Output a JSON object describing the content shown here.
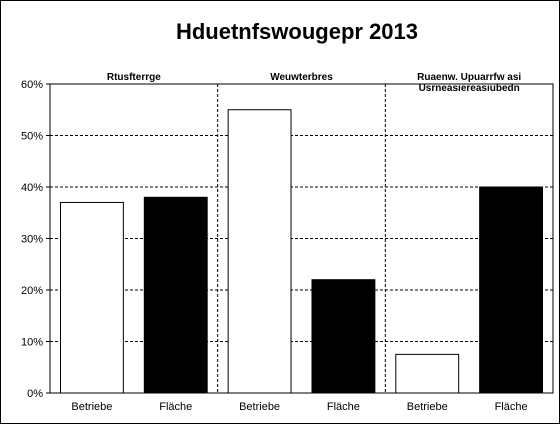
{
  "chart_data": {
    "type": "bar",
    "title": "Hduetnfswougepr 2013",
    "xlabel": "",
    "ylabel": "",
    "ylim": [
      0,
      60
    ],
    "yticks": [
      0,
      10,
      20,
      30,
      40,
      50,
      60
    ],
    "ytick_labels": [
      "0%",
      "10%",
      "20%",
      "30%",
      "40%",
      "50%",
      "60%"
    ],
    "grid": true,
    "groups": [
      {
        "label_lines": [
          "Rtusfterrge"
        ],
        "bars": [
          {
            "category": "Betriebe",
            "value": 37,
            "color": "#ffffff"
          },
          {
            "category": "Fläche",
            "value": 38,
            "color": "#000000"
          }
        ]
      },
      {
        "label_lines": [
          "Weuwterbres"
        ],
        "bars": [
          {
            "category": "Betriebe",
            "value": 55,
            "color": "#ffffff"
          },
          {
            "category": "Fläche",
            "value": 22,
            "color": "#000000"
          }
        ]
      },
      {
        "label_lines": [
          "Ruaenw. Upuarrfw asi",
          "Usrneasiereasiubedn"
        ],
        "bars": [
          {
            "category": "Betriebe",
            "value": 7.5,
            "color": "#ffffff"
          },
          {
            "category": "Fläche",
            "value": 40,
            "color": "#000000"
          }
        ]
      }
    ]
  }
}
